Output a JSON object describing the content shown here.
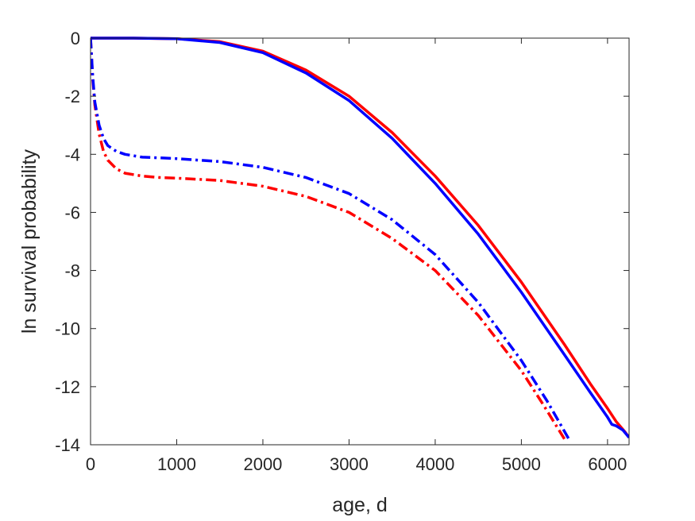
{
  "chart_data": {
    "type": "line",
    "title": "",
    "xlabel": "age, d",
    "ylabel": "ln survival probability",
    "xlim": [
      0,
      6250
    ],
    "ylim": [
      -14,
      0
    ],
    "xticks": [
      0,
      1000,
      2000,
      3000,
      4000,
      5000,
      6000
    ],
    "yticks": [
      0,
      -2,
      -4,
      -6,
      -8,
      -10,
      -12,
      -14
    ],
    "grid": false,
    "legend": "none",
    "series": [
      {
        "color": "#ff0000",
        "style": "solid",
        "x": [
          0,
          500,
          1000,
          1500,
          2000,
          2500,
          3000,
          3500,
          4000,
          4500,
          5000,
          5500,
          5800,
          6000,
          6100,
          6200,
          6250
        ],
        "y": [
          0,
          0,
          -0.02,
          -0.12,
          -0.45,
          -1.1,
          -2.0,
          -3.25,
          -4.75,
          -6.45,
          -8.4,
          -10.55,
          -11.9,
          -12.75,
          -13.2,
          -13.55,
          -13.75
        ]
      },
      {
        "color": "#0000ff",
        "style": "solid",
        "x": [
          0,
          500,
          1000,
          1500,
          2000,
          2500,
          3000,
          3500,
          4000,
          4500,
          5000,
          5500,
          5800,
          6000,
          6050,
          6100,
          6180,
          6250
        ],
        "y": [
          0,
          0,
          -0.02,
          -0.15,
          -0.5,
          -1.2,
          -2.15,
          -3.45,
          -5.0,
          -6.75,
          -8.75,
          -10.9,
          -12.2,
          -13.05,
          -13.3,
          -13.35,
          -13.5,
          -13.75
        ]
      },
      {
        "color": "#ff0000",
        "style": "dashdot",
        "x": [
          0,
          25,
          50,
          100,
          150,
          200,
          300,
          400,
          600,
          800,
          1000,
          1500,
          2000,
          2500,
          3000,
          3500,
          4000,
          4500,
          5000,
          5250,
          5500
        ],
        "y": [
          0,
          -1.4,
          -2.3,
          -3.3,
          -3.9,
          -4.2,
          -4.5,
          -4.65,
          -4.75,
          -4.8,
          -4.82,
          -4.9,
          -5.1,
          -5.45,
          -6.0,
          -6.9,
          -8.0,
          -9.55,
          -11.45,
          -12.6,
          -13.8
        ]
      },
      {
        "color": "#0000ff",
        "style": "dashdot",
        "x": [
          0,
          25,
          50,
          100,
          150,
          200,
          300,
          400,
          600,
          800,
          1000,
          1500,
          2000,
          2500,
          3000,
          3500,
          4000,
          4500,
          5000,
          5300,
          5550
        ],
        "y": [
          0,
          -1.3,
          -2.2,
          -3.0,
          -3.45,
          -3.7,
          -3.9,
          -4.0,
          -4.1,
          -4.12,
          -4.15,
          -4.25,
          -4.45,
          -4.8,
          -5.35,
          -6.25,
          -7.45,
          -9.1,
          -11.1,
          -12.5,
          -13.8
        ]
      }
    ]
  }
}
